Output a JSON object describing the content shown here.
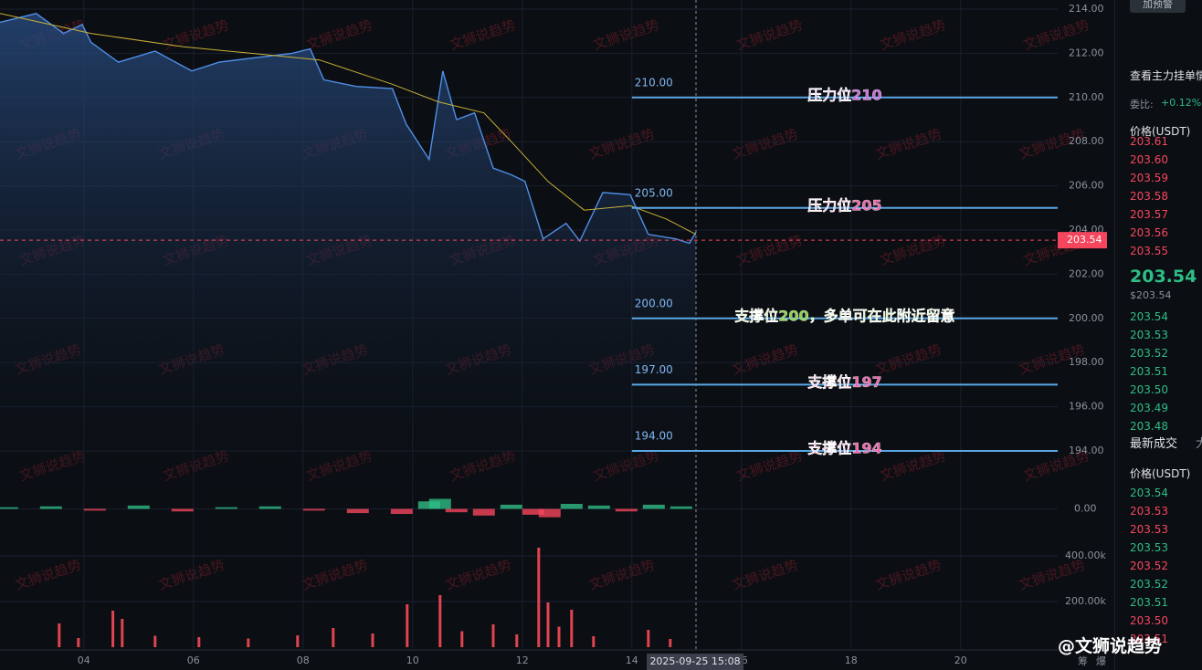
{
  "chart_data": {
    "type": "line",
    "x": [
      2.47,
      3.13,
      3.63,
      3.97,
      4.13,
      4.63,
      5.3,
      5.97,
      6.47,
      7.13,
      7.8,
      8.13,
      8.38,
      8.97,
      9.63,
      9.88,
      10.3,
      10.55,
      10.8,
      11.13,
      11.47,
      11.8,
      12.05,
      12.38,
      12.8,
      13.05,
      13.47,
      13.97,
      14.3,
      14.8,
      15.05,
      15.17
    ],
    "series": [
      {
        "color": "#4f8fe8",
        "values": [
          213.4,
          213.8,
          212.9,
          213.3,
          212.5,
          211.6,
          212.1,
          211.2,
          211.6,
          211.8,
          212.0,
          212.2,
          210.8,
          210.5,
          210.4,
          208.8,
          207.2,
          211.2,
          209.0,
          209.3,
          206.8,
          206.5,
          206.2,
          203.6,
          204.3,
          203.5,
          205.7,
          205.6,
          203.8,
          203.6,
          203.4,
          203.9
        ]
      }
    ],
    "ma": {
      "color": "#c9b037",
      "x": [
        2.47,
        4.13,
        5.8,
        7.47,
        8.3,
        9.63,
        10.47,
        11.3,
        11.8,
        12.47,
        13.13,
        13.97,
        14.63,
        15.17
      ],
      "values": [
        213.8,
        212.9,
        212.3,
        211.9,
        211.7,
        210.6,
        209.8,
        209.3,
        208.0,
        206.2,
        204.9,
        205.1,
        204.5,
        203.8
      ]
    },
    "xlim": [
      2.47,
      21.77
    ],
    "ylim": [
      194,
      214
    ],
    "xticks": [
      {
        "value": 4,
        "label": "04"
      },
      {
        "value": 6,
        "label": "06"
      },
      {
        "value": 8,
        "label": "08"
      },
      {
        "value": 10,
        "label": "10"
      },
      {
        "value": 12,
        "label": "12"
      },
      {
        "value": 14,
        "label": "14"
      },
      {
        "value": 16,
        "label": "16"
      },
      {
        "value": 18,
        "label": "18"
      },
      {
        "value": 20,
        "label": "20"
      }
    ],
    "yticks": [
      {
        "value": 194,
        "label": "194.00"
      },
      {
        "value": 196,
        "label": "196.00"
      },
      {
        "value": 198,
        "label": "198.00"
      },
      {
        "value": 200,
        "label": "200.00"
      },
      {
        "value": 202,
        "label": "202.00"
      },
      {
        "value": 204,
        "label": "204.00"
      },
      {
        "value": 206,
        "label": "206.00"
      },
      {
        "value": 208,
        "label": "208.00"
      },
      {
        "value": 210,
        "label": "210.00"
      },
      {
        "value": 212,
        "label": "212.00"
      },
      {
        "value": 214,
        "label": "214.00"
      }
    ],
    "grid": true,
    "levels": {
      "color": "#5aa7e6",
      "values": [
        210,
        205,
        200,
        197,
        194
      ],
      "value_labels": [
        "210.00",
        "205.00",
        "200.00",
        "197.00",
        "194.00"
      ],
      "annotations": [
        "压力位210",
        "压力位205",
        "支撑位200，多单可在此附近留意",
        "支撑位197",
        "支撑位194"
      ],
      "annotation_colors": [
        "#c86dd7",
        "#e86aa8",
        "#8fd14f",
        "#e86aa8",
        "#e86aa8"
      ]
    },
    "last_price": {
      "value": 203.54,
      "label": "203.54",
      "color": "#f6465d"
    },
    "crosshair": "2025-09-25 15:08",
    "osc": {
      "x": [
        2.6,
        3.4,
        4.2,
        5.0,
        5.8,
        6.6,
        7.4,
        8.2,
        9.0,
        9.8,
        10.3,
        10.5,
        10.8,
        11.3,
        11.8,
        12.2,
        12.5,
        12.9,
        13.4,
        13.9,
        14.4,
        14.9
      ],
      "values": [
        0.2,
        0.3,
        -0.2,
        0.4,
        -0.3,
        0.2,
        0.3,
        -0.2,
        -0.5,
        -0.6,
        0.9,
        1.2,
        -0.4,
        -0.8,
        0.5,
        -0.7,
        -1.0,
        0.6,
        0.4,
        -0.3,
        0.5,
        0.3
      ],
      "ylim": [
        -3,
        3
      ],
      "yticks": [
        {
          "value": 0,
          "label": "0.00"
        }
      ],
      "up": "#2ebd85",
      "down": "#f6465d"
    },
    "volume": {
      "x": [
        3.55,
        3.9,
        4.53,
        4.7,
        5.3,
        6.1,
        7.0,
        7.9,
        8.55,
        9.27,
        9.9,
        10.5,
        10.9,
        11.47,
        11.9,
        12.3,
        12.47,
        12.67,
        12.9,
        13.3,
        14.3,
        14.7
      ],
      "values": [
        104000,
        40000,
        160000,
        124000,
        50000,
        44000,
        38000,
        52000,
        84000,
        60000,
        188000,
        228000,
        70000,
        100000,
        56000,
        436000,
        196000,
        90000,
        164000,
        48000,
        76000,
        36000
      ],
      "ylim": [
        0,
        500000
      ],
      "yticks": [
        {
          "value": 200000,
          "label": "200.00k"
        },
        {
          "value": 400000,
          "label": "400.00k"
        }
      ],
      "color": "#e0454f"
    }
  },
  "watermark": "文狮说趋势",
  "footer": {
    "brand": "@文狮说趋势",
    "icons": [
      "筹",
      "爆"
    ]
  },
  "order_book": {
    "button": "加预警",
    "link": "查看主力挂单情",
    "ratio_label": "委比:",
    "ratio": "+0.12%",
    "price_header": "价格(USDT)",
    "asks": [
      "203.61",
      "203.60",
      "203.59",
      "203.58",
      "203.57",
      "203.56",
      "203.55"
    ],
    "last": "203.54",
    "last_usd": "$203.54",
    "bids": [
      "203.54",
      "203.53",
      "203.52",
      "203.51",
      "203.50",
      "203.49",
      "203.48"
    ]
  },
  "trades": {
    "title": "最新成交",
    "tab": "大",
    "price_header": "价格(USDT)",
    "prices": [
      "203.54",
      "203.53",
      "203.53",
      "203.53",
      "203.52",
      "203.52",
      "203.51",
      "203.50",
      "203.51"
    ],
    "colors": [
      "#2ebd85",
      "#f6465d",
      "#f6465d",
      "#2ebd85",
      "#f6465d",
      "#2ebd85",
      "#2ebd85",
      "#f6465d",
      "#f6465d"
    ]
  }
}
